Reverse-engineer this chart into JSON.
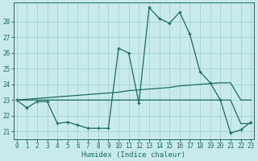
{
  "x": [
    0,
    1,
    2,
    3,
    4,
    5,
    6,
    7,
    8,
    9,
    10,
    11,
    12,
    13,
    14,
    15,
    16,
    17,
    18,
    19,
    20,
    21,
    22,
    23
  ],
  "y_main": [
    23.0,
    22.5,
    22.9,
    22.9,
    21.5,
    21.6,
    21.4,
    21.2,
    21.2,
    21.2,
    26.3,
    26.0,
    22.8,
    28.9,
    28.2,
    27.9,
    28.6,
    27.2,
    24.8,
    24.1,
    23.0,
    20.9,
    21.1,
    21.6
  ],
  "y_trend": [
    23.0,
    23.05,
    23.1,
    23.15,
    23.2,
    23.25,
    23.3,
    23.35,
    23.4,
    23.45,
    23.5,
    23.6,
    23.65,
    23.7,
    23.75,
    23.8,
    23.9,
    23.95,
    24.0,
    24.05,
    24.1,
    24.1,
    23.0,
    23.0
  ],
  "y_flat": [
    23.0,
    23.0,
    23.0,
    23.0,
    23.0,
    23.0,
    23.0,
    23.0,
    23.0,
    23.0,
    23.0,
    23.0,
    23.0,
    23.0,
    23.0,
    23.0,
    23.0,
    23.0,
    23.0,
    23.0,
    23.0,
    23.0,
    21.5,
    21.5
  ],
  "bg_color": "#c8eaea",
  "grid_color": "#9ecece",
  "line_color": "#1a6b5a",
  "xlabel": "Humidex (Indice chaleur)",
  "ylim": [
    20.5,
    29.2
  ],
  "xlim": [
    -0.3,
    23.3
  ],
  "yticks": [
    21,
    22,
    23,
    24,
    25,
    26,
    27,
    28
  ],
  "xticks": [
    0,
    1,
    2,
    3,
    4,
    5,
    6,
    7,
    8,
    9,
    10,
    11,
    12,
    13,
    14,
    15,
    16,
    17,
    18,
    19,
    20,
    21,
    22,
    23
  ]
}
